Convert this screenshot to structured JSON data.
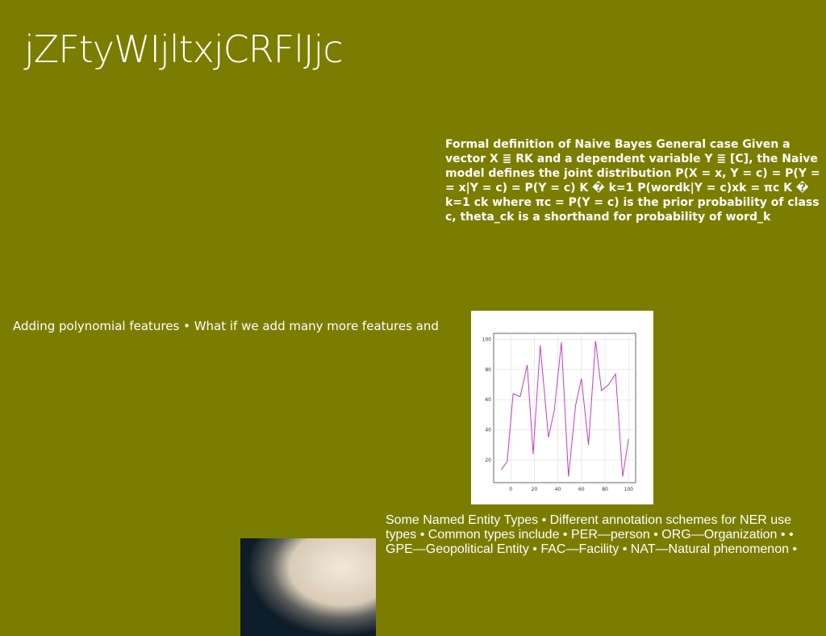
{
  "slide_title": "jZFtyWIjltxjCRFlJjc",
  "naive_bayes_text": "Formal definition of Naive Bayes General case Given a vector X ≣ RK and a dependent variable Y ≣ [C], the Naive model defines the joint distribution P(X = x, Y = c) = P(Y = = x|Y = c) = P(Y = c) K � k=1 P(wordk|Y = c)xk = πc K � k=1 ck where πc = P(Y = c) is the prior probability of class c, theta_ck is a shorthand for probability of word_k",
  "polynomial_text": "Adding polynomial features • What if we add many more features and",
  "ner_text": "Some Named Entity Types • Different annotation schemes for NER use types • Common types include • PER—person • ORG—Organization • • GPE—Geopolitical Entity • FAC—Facility • NAT—Natural phenomenon •",
  "chart_data": {
    "type": "line",
    "x": [
      -8,
      -3,
      2,
      8,
      14,
      19,
      25,
      32,
      37,
      43,
      49,
      55,
      60,
      66,
      72,
      77,
      83,
      89,
      95,
      100
    ],
    "series": [
      {
        "color": "#c03cc8",
        "values": [
          13.6,
          19,
          64,
          62,
          83,
          24,
          96,
          35,
          53,
          98,
          9,
          56,
          74,
          30,
          99,
          66,
          70,
          77,
          9,
          34
        ]
      }
    ],
    "xlim": [
      -14.5,
      106
    ],
    "ylim": [
      5,
      104
    ],
    "xticks": [
      0,
      20,
      40,
      60,
      80,
      100
    ],
    "yticks": [
      20,
      40,
      60,
      80,
      100
    ],
    "grid": true
  }
}
